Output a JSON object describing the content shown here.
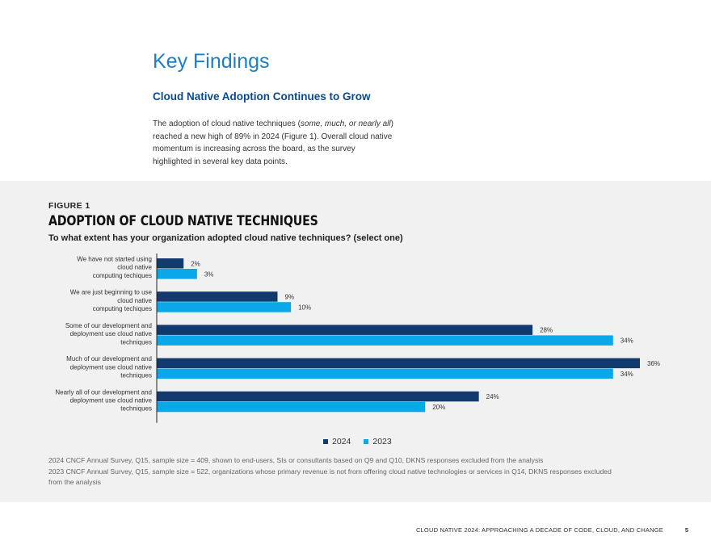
{
  "page": {
    "heading": "Key Findings",
    "section_heading": "Cloud Native Adoption Continues to Grow",
    "intro_pre": "The adoption of cloud native techniques (",
    "intro_em": "some, much, or nearly all",
    "intro_post": ") reached a new high of 89% in 2024 (Figure 1). Overall cloud native momentum is increasing across the board, as the survey highlighted in several key data points."
  },
  "figure": {
    "label": "FIGURE 1",
    "title": "ADOPTION OF CLOUD NATIVE TECHNIQUES",
    "question": "To what extent has your organization adopted cloud native techniques? (select one)",
    "notes": [
      "2024 CNCF Annual Survey, Q15, sample size = 409, shown to end-users, SIs or consultants based on Q9 and Q10, DKNS responses excluded from the analysis",
      "2023 CNCF Annual Survey, Q15, sample size = 522, organizations whose primary revenue is not from offering cloud native technologies or services in Q14, DKNS responses excluded from the analysis"
    ]
  },
  "chart_data": {
    "type": "bar",
    "orientation": "horizontal",
    "title": "ADOPTION OF CLOUD NATIVE TECHNIQUES",
    "categories": [
      [
        "We have not started using",
        "cloud native",
        "computing techiques"
      ],
      [
        "We are just beginning to use",
        "cloud native",
        "computing techiques"
      ],
      [
        "Some of our development and",
        "deployment use cloud native",
        "techniques"
      ],
      [
        "Much of our development and",
        "deployment use cloud native",
        "techniques"
      ],
      [
        "Nearly all of our development and",
        "deployment use cloud native",
        "techniques"
      ]
    ],
    "series": [
      {
        "name": "2024",
        "values": [
          2,
          9,
          28,
          36,
          24
        ],
        "color": "#123a6e"
      },
      {
        "name": "2023",
        "values": [
          3,
          10,
          34,
          34,
          20
        ],
        "color": "#0aa8e8"
      }
    ],
    "value_suffix": "%",
    "xlim": [
      0,
      36
    ],
    "grid": false,
    "legend_position": "bottom-center"
  },
  "footer": {
    "title": "CLOUD NATIVE 2024: APPROACHING A DECADE OF CODE, CLOUD, AND CHANGE",
    "page_number": "5"
  }
}
